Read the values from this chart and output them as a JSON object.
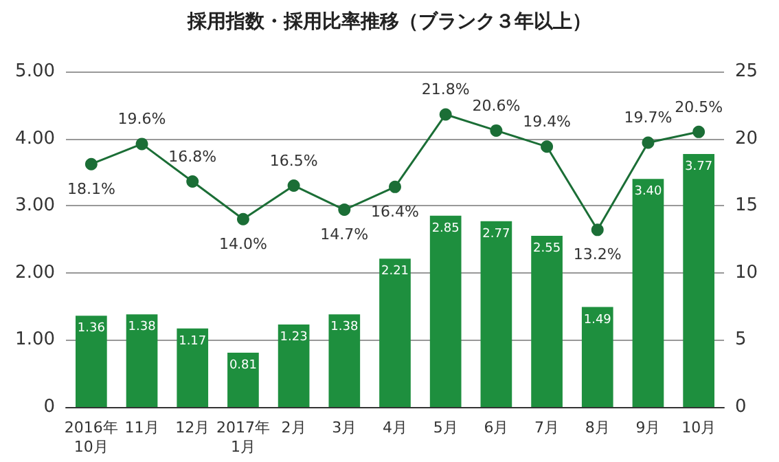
{
  "chart_data": {
    "type": "bar",
    "title": "採用指数・採用比率推移（ブランク３年以上）",
    "categories": [
      "2016年\n10月",
      "11月",
      "12月",
      "2017年\n1月",
      "2月",
      "3月",
      "4月",
      "5月",
      "6月",
      "7月",
      "8月",
      "9月",
      "10月"
    ],
    "series": [
      {
        "color": "#1e8f3e",
        "values": [
          1.36,
          1.38,
          1.17,
          0.81,
          1.23,
          1.38,
          2.21,
          2.85,
          2.77,
          2.55,
          1.49,
          3.4,
          3.77
        ],
        "value_labels": [
          "1.36",
          "1.38",
          "1.17",
          "0.81",
          "1.23",
          "1.38",
          "2.21",
          "2.85",
          "2.77",
          "2.55",
          "1.49",
          "3.40",
          "3.77"
        ]
      },
      {
        "type": "line",
        "axis": "y2",
        "color": "#1b6e36",
        "values": [
          18.1,
          19.6,
          16.8,
          14.0,
          16.5,
          14.7,
          16.4,
          21.8,
          20.6,
          19.4,
          13.2,
          19.7,
          20.5
        ],
        "value_labels": [
          "18.1%",
          "19.6%",
          "16.8%",
          "14.0%",
          "16.5%",
          "14.7%",
          "16.4%",
          "21.8%",
          "20.6%",
          "19.4%",
          "13.2%",
          "19.7%",
          "20.5%"
        ]
      }
    ],
    "ylim": [
      0,
      5
    ],
    "yticks": [
      "0",
      {
        "value": 1,
        "label": "1.00"
      },
      {
        "value": 2,
        "label": "2.00"
      },
      {
        "value": 3,
        "label": "3.00"
      },
      {
        "value": 4,
        "label": "4.00"
      },
      {
        "value": 5,
        "label": "5.00"
      }
    ],
    "y2lim": [
      0,
      25
    ],
    "y2ticks": [
      0,
      5,
      10,
      15,
      20,
      25
    ],
    "grid": "y",
    "marker": "circle"
  }
}
